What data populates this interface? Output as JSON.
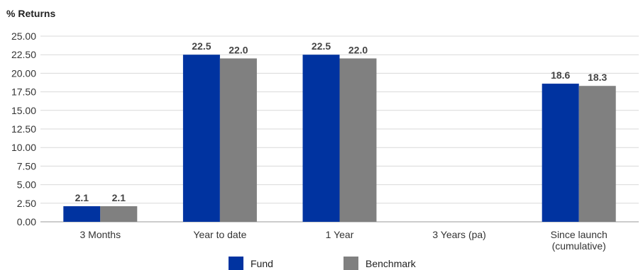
{
  "chart_data": {
    "type": "bar",
    "title": "% Returns",
    "categories": [
      "3 Months",
      "Year to date",
      "1 Year",
      "3 Years (pa)",
      "Since launch (cumulative)"
    ],
    "category_lines": [
      [
        "3 Months"
      ],
      [
        "Year to date"
      ],
      [
        "1 Year"
      ],
      [
        "3 Years (pa)"
      ],
      [
        "Since launch",
        "(cumulative)"
      ]
    ],
    "series": [
      {
        "name": "Fund",
        "color": "#0033a0",
        "values": [
          2.1,
          22.5,
          22.5,
          null,
          18.6
        ],
        "labels": [
          "2.1",
          "22.5",
          "22.5",
          "",
          "18.6"
        ]
      },
      {
        "name": "Benchmark",
        "color": "#808080",
        "values": [
          2.1,
          22.0,
          22.0,
          null,
          18.3
        ],
        "labels": [
          "2.1",
          "22.0",
          "22.0",
          "",
          "18.3"
        ]
      }
    ],
    "ylim": [
      0,
      25
    ],
    "yticks": [
      "0.00",
      "2.50",
      "5.00",
      "7.50",
      "10.00",
      "12.50",
      "15.00",
      "17.50",
      "20.00",
      "22.50",
      "25.00"
    ],
    "grid": true,
    "legend_position": "bottom"
  }
}
